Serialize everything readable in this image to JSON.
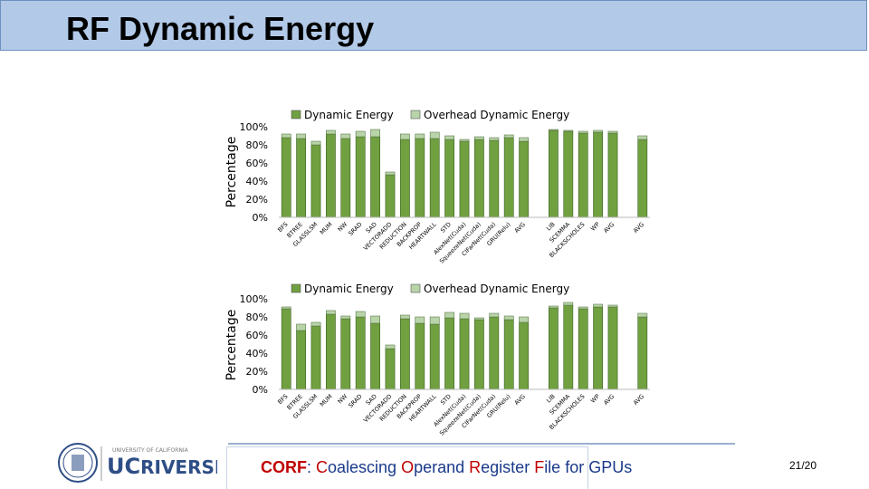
{
  "slide": {
    "title": "RF Dynamic Energy",
    "page": "21/20",
    "footer": {
      "prefix_bold": "CORF",
      "rest_parts": [
        ": ",
        "C",
        "oalescing ",
        "O",
        "perand ",
        "R",
        "egister ",
        "F",
        "ile for ",
        "GPUs"
      ]
    },
    "logo": {
      "top_text": "UNIVERSITY OF CALIFORNIA",
      "name_uc": "UC",
      "name_rest": "RIVERSIDE"
    }
  },
  "colors": {
    "dynamic": "#70a040",
    "overhead": "#b8d4a8",
    "title": "#000000",
    "footer": "#1a3a8a",
    "accent": "#c00000",
    "header_bg": "#b2c9e8"
  },
  "chart_data": [
    {
      "type": "bar",
      "stacked": true,
      "ylabel": "Percentage",
      "yticks": [
        "0%",
        "20%",
        "40%",
        "60%",
        "80%",
        "100%"
      ],
      "ylim": [
        0,
        100
      ],
      "legend_position": "top",
      "categories": [
        "BFS",
        "BTREE",
        "GLASSLSM",
        "MUM",
        "NW",
        "SRAD",
        "SAD",
        "VECTORADD",
        "REDUCTION",
        "BACKPROP",
        "HEARTWALL",
        "STD",
        "AlexNet(Cuda)",
        "SqueezeNet(Cuda)",
        "CIFarNet(Cuda)",
        "GRU(Relu)",
        "AVG",
        "",
        "LIB",
        "SCEMMA",
        "BLACKSCHOLES",
        "WP",
        "AVG",
        "",
        "AVG"
      ],
      "series": [
        {
          "name": "Dynamic Energy",
          "values": [
            88,
            87,
            80,
            92,
            87,
            89,
            89,
            47,
            86,
            87,
            87,
            86,
            84,
            86,
            85,
            88,
            84,
            null,
            96,
            95,
            93,
            94,
            93,
            null,
            86
          ]
        },
        {
          "name": "Overhead Dynamic Energy",
          "values": [
            4,
            5,
            4,
            4,
            5,
            6,
            8,
            3,
            6,
            5,
            7,
            4,
            2,
            3,
            3,
            3,
            4,
            null,
            1,
            1,
            2,
            2,
            2,
            null,
            4
          ]
        }
      ]
    },
    {
      "type": "bar",
      "stacked": true,
      "ylabel": "Percentage",
      "yticks": [
        "0%",
        "20%",
        "40%",
        "60%",
        "80%",
        "100%"
      ],
      "ylim": [
        0,
        100
      ],
      "legend_position": "top",
      "categories": [
        "BFS",
        "BTREE",
        "GLASSLSM",
        "MUM",
        "NW",
        "SRAD",
        "SAD",
        "VECTORADD",
        "REDUCTION",
        "BACKPROP",
        "HEARTWALL",
        "STD",
        "AlexNet(Cuda)",
        "SqueezeNet(Cuda)",
        "CIFarNet(Cuda)",
        "GRU(Relu)",
        "AVG",
        "",
        "LIB",
        "SCEMMA",
        "BLACKSCHOLES",
        "WP",
        "AVG",
        "",
        "AVG"
      ],
      "series": [
        {
          "name": "Dynamic Energy",
          "values": [
            89,
            65,
            70,
            83,
            78,
            80,
            73,
            45,
            78,
            73,
            72,
            79,
            78,
            77,
            80,
            77,
            74,
            null,
            90,
            93,
            89,
            91,
            91,
            null,
            80
          ]
        },
        {
          "name": "Overhead Dynamic Energy",
          "values": [
            2,
            7,
            4,
            4,
            3,
            6,
            8,
            4,
            4,
            7,
            8,
            6,
            6,
            2,
            4,
            4,
            6,
            null,
            2,
            3,
            2,
            3,
            2,
            null,
            4
          ]
        }
      ]
    }
  ]
}
